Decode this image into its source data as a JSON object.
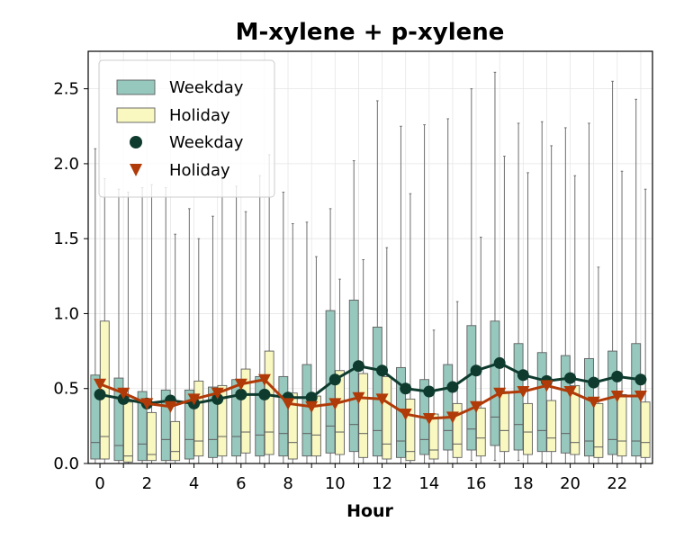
{
  "chart_data": {
    "type": "box",
    "title": "M-xylene + p-xylene",
    "xlabel": "Hour",
    "ylabel": "",
    "ylim": [
      0,
      2.75
    ],
    "xlim": [
      -0.5,
      23.5
    ],
    "x_ticks": [
      0,
      2,
      4,
      6,
      8,
      10,
      12,
      14,
      16,
      18,
      20,
      22
    ],
    "y_ticks": [
      "0.0",
      "0.5",
      "1.0",
      "1.5",
      "2.0",
      "2.5"
    ],
    "grid": true,
    "legend_position": "top-left",
    "legend": [
      {
        "label": "Weekday",
        "kind": "box",
        "color": "#96c8be"
      },
      {
        "label": "Holiday",
        "kind": "box",
        "color": "#f8f8c0"
      },
      {
        "label": "Weekday",
        "kind": "circle-marker",
        "color": "#0e3b2e"
      },
      {
        "label": "Holiday",
        "kind": "triangle-marker",
        "color": "#b03a08"
      }
    ],
    "hours": [
      0,
      1,
      2,
      3,
      4,
      5,
      6,
      7,
      8,
      9,
      10,
      11,
      12,
      13,
      14,
      15,
      16,
      17,
      18,
      19,
      20,
      21,
      22,
      23
    ],
    "series": [
      {
        "name": "Weekday",
        "box_color": "#96c8be",
        "line_color": "#0e3b2e",
        "marker": "circle",
        "boxes": [
          {
            "whislo": 0,
            "q1": 0.03,
            "med": 0.14,
            "q3": 0.59,
            "whishi": 2.1
          },
          {
            "whislo": 0,
            "q1": 0.02,
            "med": 0.12,
            "q3": 0.57,
            "whishi": 1.83
          },
          {
            "whislo": 0,
            "q1": 0.02,
            "med": 0.13,
            "q3": 0.48,
            "whishi": 1.84
          },
          {
            "whislo": 0,
            "q1": 0.02,
            "med": 0.16,
            "q3": 0.49,
            "whishi": 1.84
          },
          {
            "whislo": 0,
            "q1": 0.03,
            "med": 0.16,
            "q3": 0.49,
            "whishi": 1.7
          },
          {
            "whislo": 0,
            "q1": 0.04,
            "med": 0.16,
            "q3": 0.51,
            "whishi": 1.65
          },
          {
            "whislo": 0,
            "q1": 0.05,
            "med": 0.18,
            "q3": 0.56,
            "whishi": 1.85
          },
          {
            "whislo": 0,
            "q1": 0.05,
            "med": 0.19,
            "q3": 0.58,
            "whishi": 1.92
          },
          {
            "whislo": 0,
            "q1": 0.05,
            "med": 0.2,
            "q3": 0.58,
            "whishi": 1.81
          },
          {
            "whislo": 0,
            "q1": 0.05,
            "med": 0.2,
            "q3": 0.66,
            "whishi": 1.61
          },
          {
            "whislo": 0,
            "q1": 0.07,
            "med": 0.25,
            "q3": 1.02,
            "whishi": 1.7
          },
          {
            "whislo": 0,
            "q1": 0.08,
            "med": 0.26,
            "q3": 1.09,
            "whishi": 2.02
          },
          {
            "whislo": 0,
            "q1": 0.05,
            "med": 0.22,
            "q3": 0.91,
            "whishi": 2.42
          },
          {
            "whislo": 0,
            "q1": 0.04,
            "med": 0.15,
            "q3": 0.64,
            "whishi": 2.25
          },
          {
            "whislo": 0,
            "q1": 0.06,
            "med": 0.16,
            "q3": 0.56,
            "whishi": 2.26
          },
          {
            "whislo": 0,
            "q1": 0.09,
            "med": 0.22,
            "q3": 0.66,
            "whishi": 2.3
          },
          {
            "whislo": 0.02,
            "q1": 0.09,
            "med": 0.23,
            "q3": 0.92,
            "whishi": 2.5
          },
          {
            "whislo": 0.02,
            "q1": 0.12,
            "med": 0.31,
            "q3": 0.95,
            "whishi": 2.61
          },
          {
            "whislo": 0.02,
            "q1": 0.09,
            "med": 0.26,
            "q3": 0.8,
            "whishi": 2.27
          },
          {
            "whislo": 0.01,
            "q1": 0.08,
            "med": 0.22,
            "q3": 0.74,
            "whishi": 2.28
          },
          {
            "whislo": 0,
            "q1": 0.07,
            "med": 0.2,
            "q3": 0.72,
            "whishi": 2.24
          },
          {
            "whislo": 0,
            "q1": 0.05,
            "med": 0.15,
            "q3": 0.7,
            "whishi": 2.27
          },
          {
            "whislo": 0,
            "q1": 0.06,
            "med": 0.16,
            "q3": 0.75,
            "whishi": 2.55
          },
          {
            "whislo": 0,
            "q1": 0.05,
            "med": 0.15,
            "q3": 0.8,
            "whishi": 2.43
          }
        ],
        "means": [
          0.46,
          0.43,
          0.4,
          0.42,
          0.4,
          0.43,
          0.46,
          0.46,
          0.44,
          0.44,
          0.56,
          0.65,
          0.62,
          0.5,
          0.48,
          0.51,
          0.62,
          0.67,
          0.59,
          0.55,
          0.57,
          0.54,
          0.58,
          0.56
        ]
      },
      {
        "name": "Holiday",
        "box_color": "#f8f8c0",
        "line_color": "#b03a08",
        "marker": "triangle-down",
        "boxes": [
          {
            "whislo": 0,
            "q1": 0.03,
            "med": 0.18,
            "q3": 0.95,
            "whishi": 1.9
          },
          {
            "whislo": 0,
            "q1": 0.01,
            "med": 0.05,
            "q3": 0.41,
            "whishi": 1.81
          },
          {
            "whislo": 0,
            "q1": 0.02,
            "med": 0.06,
            "q3": 0.34,
            "whishi": 1.86
          },
          {
            "whislo": 0,
            "q1": 0.02,
            "med": 0.08,
            "q3": 0.28,
            "whishi": 1.53
          },
          {
            "whislo": 0,
            "q1": 0.05,
            "med": 0.15,
            "q3": 0.55,
            "whishi": 1.5
          },
          {
            "whislo": 0,
            "q1": 0.05,
            "med": 0.18,
            "q3": 0.52,
            "whishi": 1.98
          },
          {
            "whislo": 0,
            "q1": 0.07,
            "med": 0.21,
            "q3": 0.63,
            "whishi": 1.68
          },
          {
            "whislo": 0,
            "q1": 0.06,
            "med": 0.21,
            "q3": 0.75,
            "whishi": 2.06
          },
          {
            "whislo": 0,
            "q1": 0.03,
            "med": 0.14,
            "q3": 0.47,
            "whishi": 1.6
          },
          {
            "whislo": 0,
            "q1": 0.05,
            "med": 0.19,
            "q3": 0.45,
            "whishi": 1.38
          },
          {
            "whislo": 0,
            "q1": 0.06,
            "med": 0.21,
            "q3": 0.62,
            "whishi": 1.23
          },
          {
            "whislo": 0,
            "q1": 0.04,
            "med": 0.2,
            "q3": 0.6,
            "whishi": 1.36
          },
          {
            "whislo": 0,
            "q1": 0.03,
            "med": 0.13,
            "q3": 0.58,
            "whishi": 1.44
          },
          {
            "whislo": 0,
            "q1": 0.02,
            "med": 0.08,
            "q3": 0.43,
            "whishi": 1.8
          },
          {
            "whislo": 0,
            "q1": 0.03,
            "med": 0.09,
            "q3": 0.33,
            "whishi": 0.89
          },
          {
            "whislo": 0,
            "q1": 0.04,
            "med": 0.13,
            "q3": 0.4,
            "whishi": 1.08
          },
          {
            "whislo": 0,
            "q1": 0.05,
            "med": 0.17,
            "q3": 0.37,
            "whishi": 1.51
          },
          {
            "whislo": 0,
            "q1": 0.08,
            "med": 0.22,
            "q3": 0.48,
            "whishi": 2.05
          },
          {
            "whislo": 0,
            "q1": 0.06,
            "med": 0.21,
            "q3": 0.4,
            "whishi": 1.94
          },
          {
            "whislo": 0,
            "q1": 0.08,
            "med": 0.17,
            "q3": 0.42,
            "whishi": 2.12
          },
          {
            "whislo": 0,
            "q1": 0.06,
            "med": 0.14,
            "q3": 0.52,
            "whishi": 1.92
          },
          {
            "whislo": 0,
            "q1": 0.04,
            "med": 0.11,
            "q3": 0.4,
            "whishi": 1.31
          },
          {
            "whislo": 0,
            "q1": 0.05,
            "med": 0.15,
            "q3": 0.46,
            "whishi": 1.95
          },
          {
            "whislo": 0,
            "q1": 0.04,
            "med": 0.14,
            "q3": 0.41,
            "whishi": 1.83
          }
        ],
        "means": [
          0.53,
          0.47,
          0.4,
          0.38,
          0.43,
          0.47,
          0.53,
          0.56,
          0.4,
          0.38,
          0.4,
          0.44,
          0.43,
          0.33,
          0.3,
          0.31,
          0.38,
          0.47,
          0.48,
          0.52,
          0.48,
          0.41,
          0.45,
          0.45
        ]
      }
    ]
  }
}
